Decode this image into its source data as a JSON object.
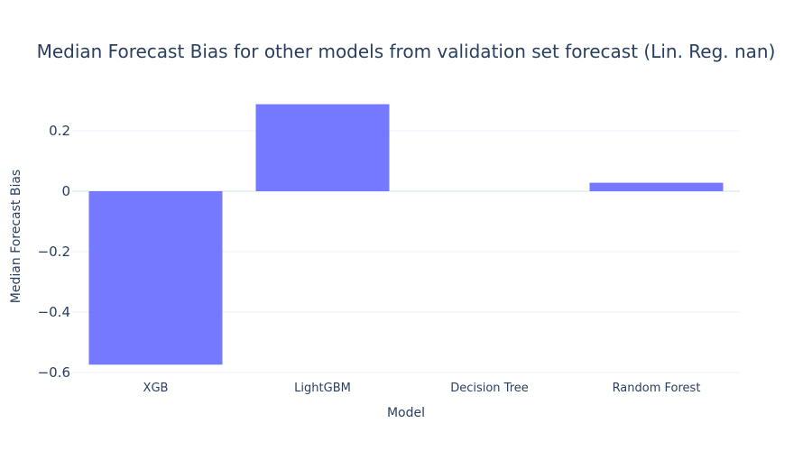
{
  "chart_data": {
    "type": "bar",
    "title": "Median Forecast Bias for other models from validation set forecast (Lin. Reg. nan)",
    "xlabel": "Model",
    "ylabel": "Median Forecast Bias",
    "categories": [
      "XGB",
      "LightGBM",
      "Decision Tree",
      "Random Forest"
    ],
    "values": [
      -0.574,
      0.288,
      0,
      0.028
    ],
    "ylim": [
      -0.6,
      0.3
    ],
    "yticks": [
      0.2,
      0,
      -0.2,
      -0.4,
      -0.6
    ],
    "ytick_labels": [
      "0.2",
      "0",
      "−0.2",
      "−0.4",
      "−0.6"
    ],
    "bar_color": "#7579ff",
    "grid": true,
    "legend": "none"
  }
}
